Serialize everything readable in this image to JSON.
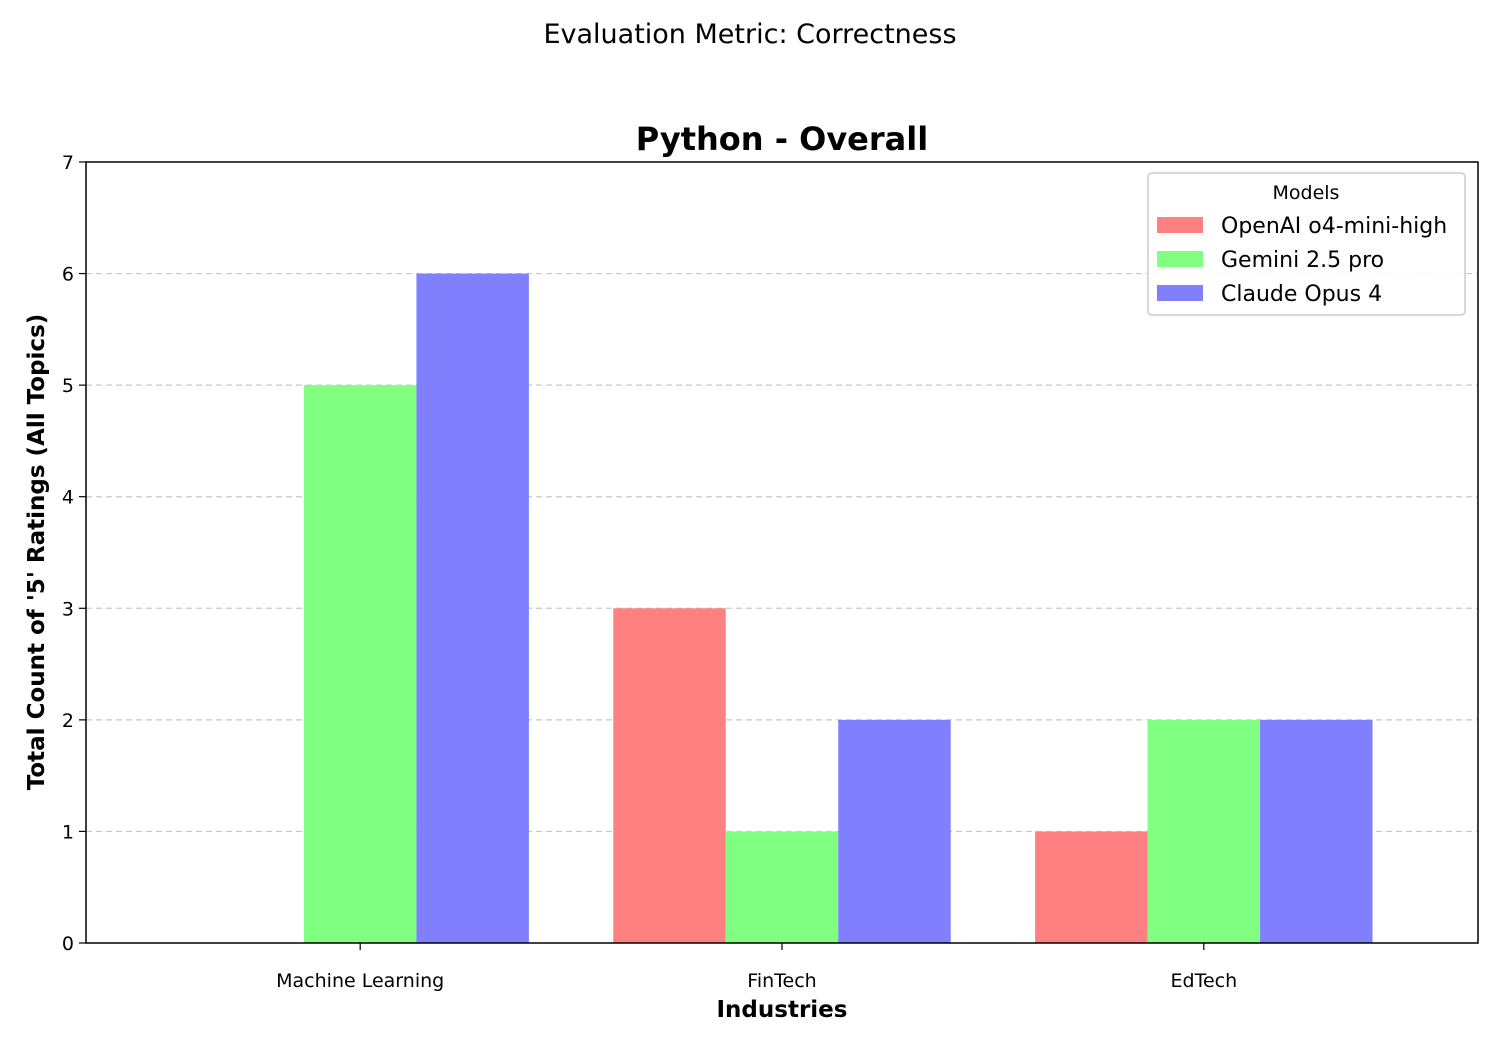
{
  "chart_data": {
    "type": "bar",
    "suptitle": "Evaluation Metric: Correctness",
    "title": "Python - Overall",
    "xlabel": "Industries",
    "ylabel": "Total Count of '5' Ratings (All Topics)",
    "categories": [
      "Machine Learning",
      "FinTech",
      "EdTech"
    ],
    "series": [
      {
        "name": "OpenAI o4-mini-high",
        "color": "#ff8080",
        "values": [
          0,
          3,
          1
        ]
      },
      {
        "name": "Gemini 2.5 pro",
        "color": "#80ff80",
        "values": [
          5,
          1,
          2
        ]
      },
      {
        "name": "Claude Opus 4",
        "color": "#8080ff",
        "values": [
          6,
          2,
          2
        ]
      }
    ],
    "ylim": [
      0,
      7
    ],
    "yticks": [
      "0",
      "1",
      "2",
      "3",
      "4",
      "5",
      "6",
      "7"
    ],
    "grid": "y-dashed",
    "legend": {
      "title": "Models",
      "placement": "top-right"
    }
  }
}
